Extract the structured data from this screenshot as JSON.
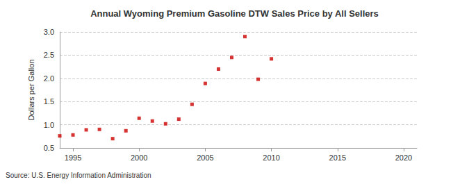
{
  "chart_data": {
    "type": "scatter",
    "title": "Annual Wyoming Premium Gasoline DTW Sales Price by All Sellers",
    "y_label": "Dollars per Gallon",
    "annotations": [
      "Source: U.S. Energy Information Administration"
    ],
    "x": [
      1994,
      1995,
      1996,
      1997,
      1998,
      1999,
      2000,
      2001,
      2002,
      2003,
      2004,
      2005,
      2006,
      2007,
      2008,
      2009,
      2010
    ],
    "values": [
      0.76,
      0.78,
      0.89,
      0.9,
      0.7,
      0.87,
      1.14,
      1.08,
      1.02,
      1.12,
      1.44,
      1.89,
      2.2,
      2.45,
      2.9,
      1.98,
      2.42
    ],
    "color": "#cc0000",
    "marker": "square",
    "xlim": [
      1994,
      2021
    ],
    "xticks": [
      1995,
      2000,
      2005,
      2010,
      2015,
      2020
    ],
    "ylim": [
      0.5,
      3.0
    ],
    "yticks": [
      0.5,
      {
        "value": 1.0,
        "label": "1.0"
      },
      1.5,
      {
        "value": 2.0,
        "label": "2.0"
      },
      2.5,
      {
        "value": 3.0,
        "label": "3.0"
      }
    ],
    "grid": true
  }
}
